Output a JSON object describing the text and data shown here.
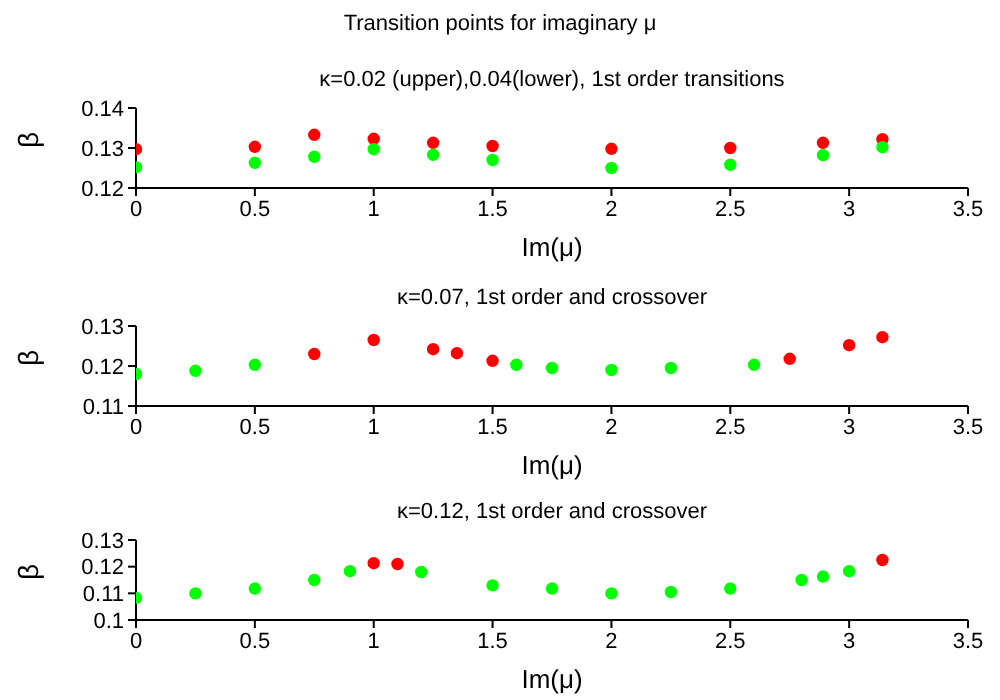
{
  "chart_data": [
    {
      "type": "scatter",
      "title": "Transition points for imaginary μ",
      "subtitle": "κ=0.02 (upper),0.04(lower), 1st order transitions",
      "xlabel": "Im(μ)",
      "ylabel": "β",
      "xlim": [
        0,
        3.5
      ],
      "xticks": [
        0,
        0.5,
        1,
        1.5,
        2,
        2.5,
        3,
        3.5
      ],
      "ylim": [
        0.12,
        0.14
      ],
      "yticks": [
        0.12,
        0.13,
        0.14
      ],
      "marker": "circle",
      "series": [
        {
          "color": "#ff0000",
          "x": [
            0,
            0.5,
            0.75,
            1,
            1.25,
            1.5,
            2,
            2.5,
            2.89,
            3.14
          ],
          "values": [
            0.1297,
            0.1303,
            0.1333,
            0.1323,
            0.1313,
            0.1305,
            0.1298,
            0.13,
            0.1313,
            0.1322
          ]
        },
        {
          "color": "#00ff00",
          "x": [
            0,
            0.5,
            0.75,
            1,
            1.25,
            1.5,
            2,
            2.5,
            2.89,
            3.14
          ],
          "values": [
            0.1252,
            0.1263,
            0.1278,
            0.1297,
            0.1283,
            0.127,
            0.125,
            0.1258,
            0.1282,
            0.1302
          ]
        }
      ]
    },
    {
      "type": "scatter",
      "title": "κ=0.07, 1st order and crossover",
      "xlabel": "Im(μ)",
      "ylabel": "β",
      "xlim": [
        0,
        3.5
      ],
      "xticks": [
        0,
        0.5,
        1,
        1.5,
        2,
        2.5,
        3,
        3.5
      ],
      "ylim": [
        0.11,
        0.13
      ],
      "yticks": [
        0.11,
        0.12,
        0.13
      ],
      "marker": "circle",
      "series": [
        {
          "color": "#ff0000",
          "x": [
            0.75,
            1,
            1.25,
            1.35,
            1.5,
            2.75,
            3,
            3.14
          ],
          "values": [
            0.123,
            0.1265,
            0.1242,
            0.1232,
            0.1213,
            0.1218,
            0.1252,
            0.1272
          ]
        },
        {
          "color": "#00ff00",
          "x": [
            0,
            0.25,
            0.5,
            1.6,
            1.75,
            2,
            2.25,
            2.6
          ],
          "values": [
            0.118,
            0.1188,
            0.1203,
            0.1203,
            0.1195,
            0.119,
            0.1195,
            0.1203
          ]
        }
      ]
    },
    {
      "type": "scatter",
      "title": "κ=0.12, 1st order and crossover",
      "xlabel": "Im(μ)",
      "ylabel": "β",
      "xlim": [
        0,
        3.5
      ],
      "xticks": [
        0,
        0.5,
        1,
        1.5,
        2,
        2.5,
        3,
        3.5
      ],
      "ylim": [
        0.1,
        0.13
      ],
      "yticks": [
        0.1,
        0.11,
        0.12,
        0.13
      ],
      "marker": "circle",
      "series": [
        {
          "color": "#ff0000",
          "x": [
            1,
            1.1,
            3.14
          ],
          "values": [
            0.1213,
            0.121,
            0.1225
          ]
        },
        {
          "color": "#00ff00",
          "x": [
            0,
            0.25,
            0.5,
            0.75,
            0.9,
            1.2,
            1.5,
            1.75,
            2,
            2.25,
            2.5,
            2.8,
            2.89,
            3
          ],
          "values": [
            0.1083,
            0.11,
            0.1118,
            0.115,
            0.1183,
            0.118,
            0.113,
            0.1118,
            0.11,
            0.1105,
            0.1118,
            0.115,
            0.1163,
            0.1183
          ]
        }
      ]
    }
  ]
}
